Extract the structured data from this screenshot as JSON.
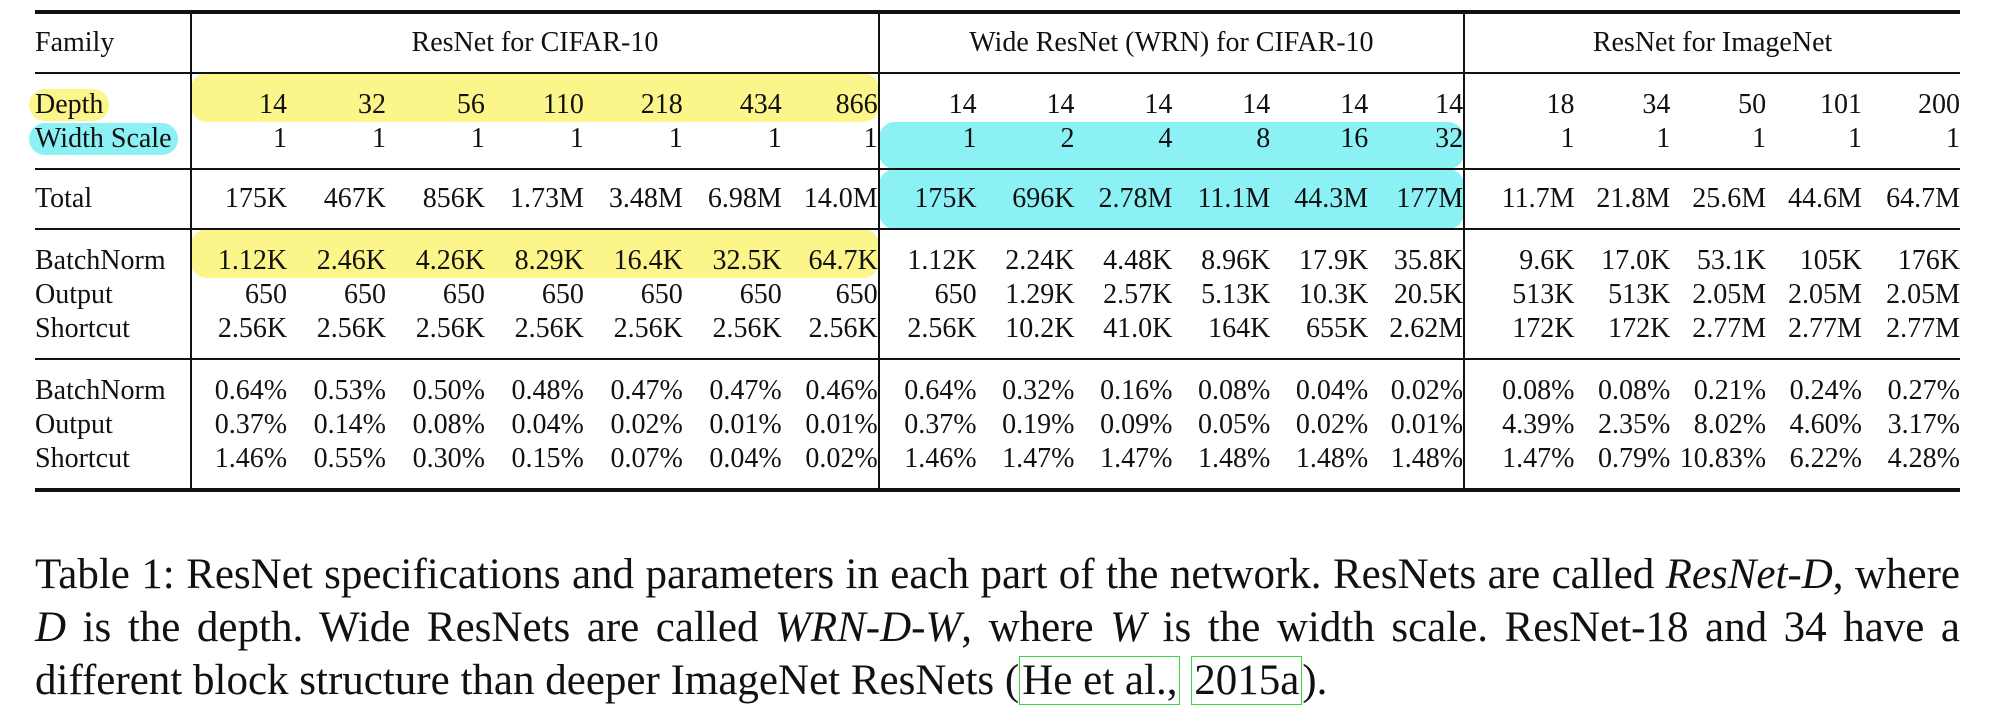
{
  "table": {
    "family_label": "Family",
    "groups": [
      "ResNet for CIFAR-10",
      "Wide ResNet (WRN) for CIFAR-10",
      "ResNet for ImageNet"
    ],
    "rows": {
      "depth": {
        "label": "Depth",
        "values": [
          "14",
          "32",
          "56",
          "110",
          "218",
          "434",
          "866",
          "14",
          "14",
          "14",
          "14",
          "14",
          "14",
          "18",
          "34",
          "50",
          "101",
          "200"
        ]
      },
      "width": {
        "label": "Width Scale",
        "values": [
          "1",
          "1",
          "1",
          "1",
          "1",
          "1",
          "1",
          "1",
          "2",
          "4",
          "8",
          "16",
          "32",
          "1",
          "1",
          "1",
          "1",
          "1"
        ]
      },
      "total": {
        "label": "Total",
        "values": [
          "175K",
          "467K",
          "856K",
          "1.73M",
          "3.48M",
          "6.98M",
          "14.0M",
          "175K",
          "696K",
          "2.78M",
          "11.1M",
          "44.3M",
          "177M",
          "11.7M",
          "21.8M",
          "25.6M",
          "44.6M",
          "64.7M"
        ]
      },
      "bn": {
        "label": "BatchNorm",
        "values": [
          "1.12K",
          "2.46K",
          "4.26K",
          "8.29K",
          "16.4K",
          "32.5K",
          "64.7K",
          "1.12K",
          "2.24K",
          "4.48K",
          "8.96K",
          "17.9K",
          "35.8K",
          "9.6K",
          "17.0K",
          "53.1K",
          "105K",
          "176K"
        ]
      },
      "out": {
        "label": "Output",
        "values": [
          "650",
          "650",
          "650",
          "650",
          "650",
          "650",
          "650",
          "650",
          "1.29K",
          "2.57K",
          "5.13K",
          "10.3K",
          "20.5K",
          "513K",
          "513K",
          "2.05M",
          "2.05M",
          "2.05M"
        ]
      },
      "sc": {
        "label": "Shortcut",
        "values": [
          "2.56K",
          "2.56K",
          "2.56K",
          "2.56K",
          "2.56K",
          "2.56K",
          "2.56K",
          "2.56K",
          "10.2K",
          "41.0K",
          "164K",
          "655K",
          "2.62M",
          "172K",
          "172K",
          "2.77M",
          "2.77M",
          "2.77M"
        ]
      },
      "bn_pct": {
        "label": "BatchNorm",
        "values": [
          "0.64%",
          "0.53%",
          "0.50%",
          "0.48%",
          "0.47%",
          "0.47%",
          "0.46%",
          "0.64%",
          "0.32%",
          "0.16%",
          "0.08%",
          "0.04%",
          "0.02%",
          "0.08%",
          "0.08%",
          "0.21%",
          "0.24%",
          "0.27%"
        ]
      },
      "out_pct": {
        "label": "Output",
        "values": [
          "0.37%",
          "0.14%",
          "0.08%",
          "0.04%",
          "0.02%",
          "0.01%",
          "0.01%",
          "0.37%",
          "0.19%",
          "0.09%",
          "0.05%",
          "0.02%",
          "0.01%",
          "4.39%",
          "2.35%",
          "8.02%",
          "4.60%",
          "3.17%"
        ]
      },
      "sc_pct": {
        "label": "Shortcut",
        "values": [
          "1.46%",
          "0.55%",
          "0.30%",
          "0.15%",
          "0.07%",
          "0.04%",
          "0.02%",
          "1.46%",
          "1.47%",
          "1.47%",
          "1.48%",
          "1.48%",
          "1.48%",
          "1.47%",
          "0.79%",
          "10.83%",
          "6.22%",
          "4.28%"
        ]
      }
    }
  },
  "caption": {
    "p1": "Table 1: ResNet specifications and parameters in each part of the network. ResNets are called ",
    "it1": "ResNet-D",
    "p2": ", where ",
    "it2": "D",
    "p3": " is the depth. Wide ResNets are called ",
    "it3": "WRN-D-W",
    "p4": ", where ",
    "it4": "W",
    "p5": " is the width scale. ResNet-18 and 34 have a different block structure than deeper ImageNet ResNets (",
    "cite1": "He et al.,",
    "p6": " ",
    "cite2": "2015a",
    "p7": ")."
  },
  "colors": {
    "highlight_yellow": "#fbf58a",
    "highlight_cyan": "#8cf1f4",
    "cite_box": "#3fd13f"
  }
}
